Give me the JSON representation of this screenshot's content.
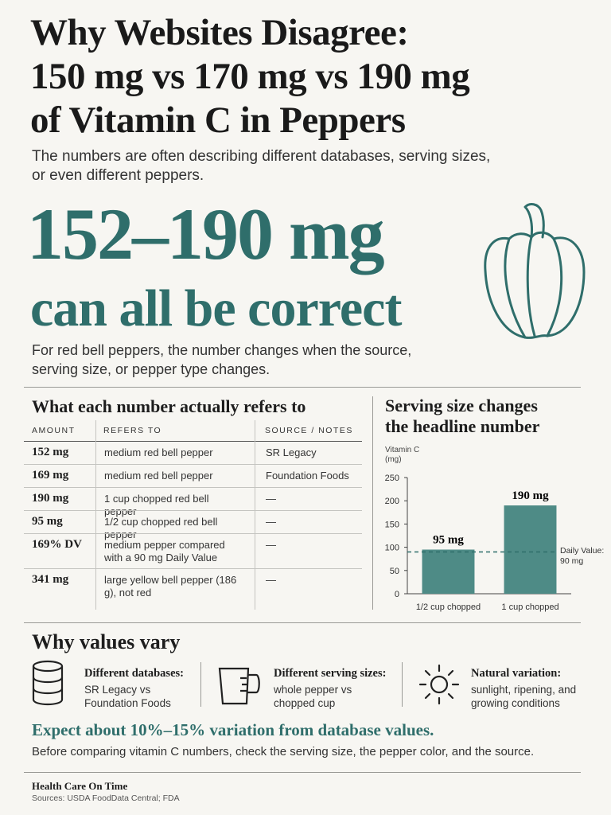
{
  "header": {
    "title": [
      "Why Websites Disagree:",
      "150 mg vs 170 mg vs 190 mg",
      "of Vitamin C in Peppers"
    ],
    "subtitle": [
      "The numbers are often describing different databases, serving sizes,",
      "or even different peppers."
    ]
  },
  "hero": {
    "headline": "152–190 mg",
    "subheadline": "can all be correct",
    "text": [
      "For red bell peppers, the number changes when the source,",
      "serving size, or pepper type changes."
    ]
  },
  "table": {
    "title": "What each number actually refers to",
    "columns": [
      "AMOUNT",
      "REFERS TO",
      "SOURCE / NOTES"
    ],
    "rows": [
      [
        "152 mg",
        "medium red bell pepper",
        "SR Legacy"
      ],
      [
        "169 mg",
        "medium red bell pepper",
        "Foundation Foods"
      ],
      [
        "190 mg",
        "1 cup chopped red bell pepper",
        "—"
      ],
      [
        "95 mg",
        "1/2 cup chopped red bell pepper",
        "—"
      ],
      [
        "169% DV",
        "medium pepper compared with a 90 mg Daily Value",
        "—"
      ],
      [
        "341 mg",
        "large yellow bell pepper (186 g), not red",
        "—"
      ]
    ]
  },
  "chart_data": {
    "type": "bar",
    "title": [
      "Serving size changes",
      "the headline number"
    ],
    "y_label": "Vitamin C (mg)",
    "categories": [
      "1/2 cup chopped",
      "1 cup chopped"
    ],
    "values": [
      95,
      190
    ],
    "value_labels": [
      "95 mg",
      "190 mg"
    ],
    "color": "#4e8b86",
    "ylim": [
      0,
      250
    ],
    "yticks": [
      0,
      50,
      100,
      150,
      200,
      250
    ],
    "reference_line": {
      "value": 90,
      "label": "Daily Value: 90 mg"
    }
  },
  "reasons": {
    "title": "Why values vary",
    "items": [
      {
        "heading": "Different databases:",
        "text": "SR Legacy vs Foundation Foods"
      },
      {
        "heading": "Different serving sizes:",
        "text": "whole pepper vs chopped cup"
      },
      {
        "heading": "Natural variation:",
        "text": "sunlight, ripening, and growing conditions"
      }
    ]
  },
  "callout": {
    "text": "Expect about 10%–15% variation from database values.",
    "note": "Before comparing vitamin C numbers, check the serving size, the pepper color, and the source."
  },
  "footer": {
    "brand": "Health Care On Time",
    "sources": "Sources: USDA FoodData Central; FDA"
  }
}
